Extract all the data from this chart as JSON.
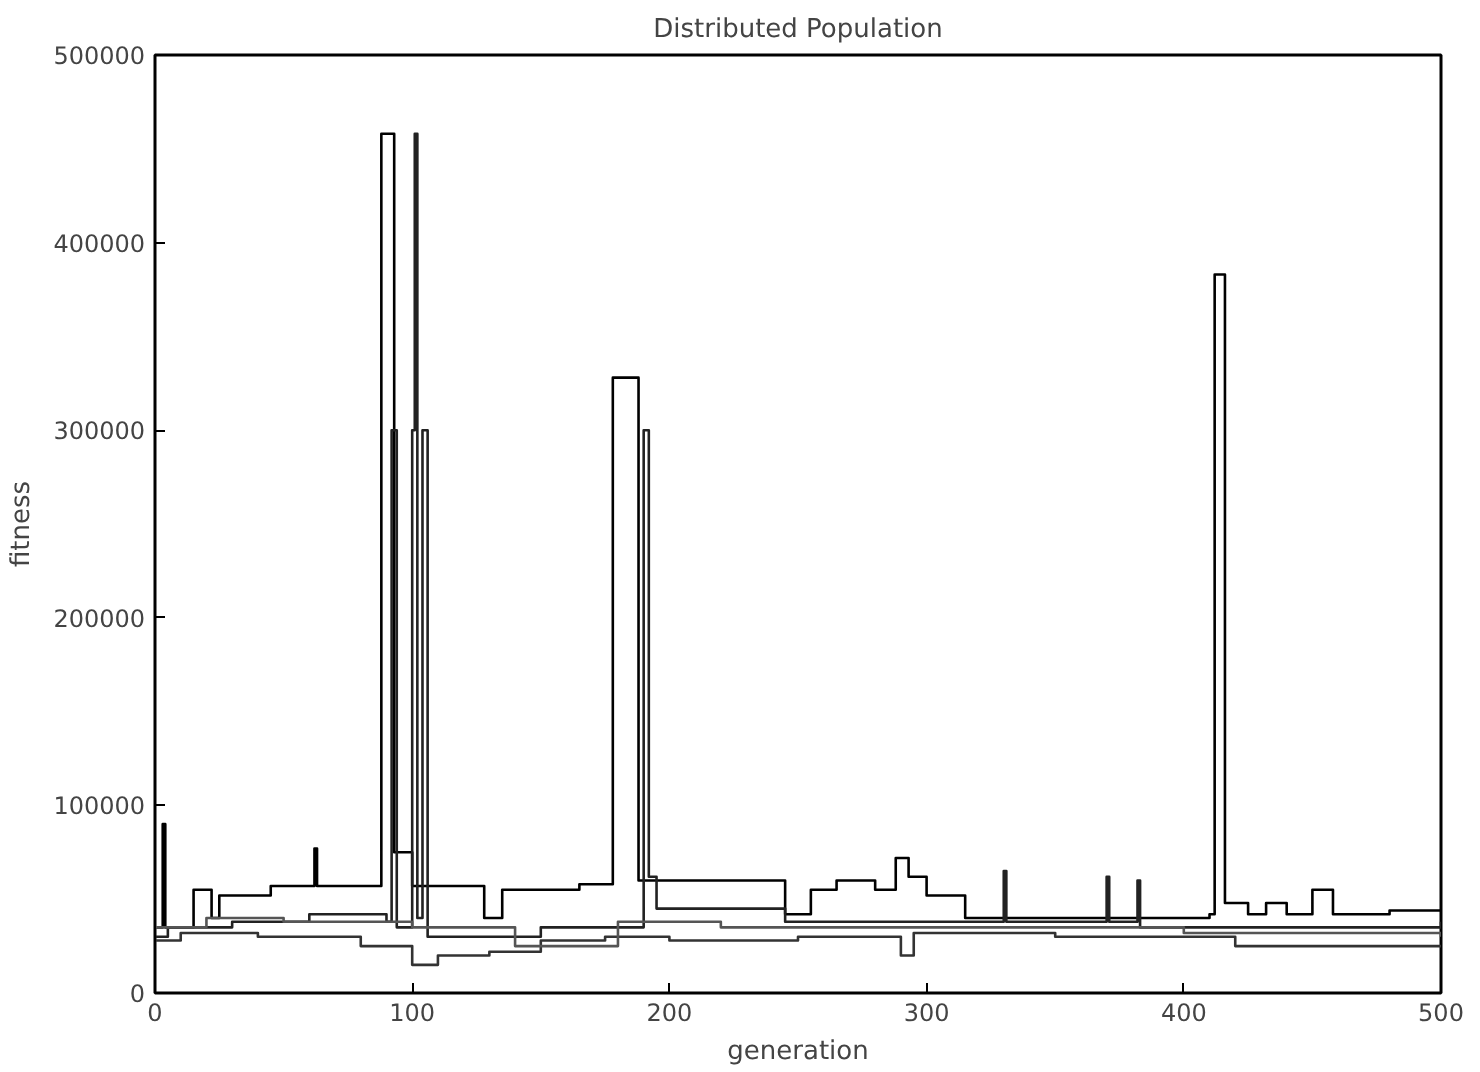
{
  "chart_data": {
    "type": "step",
    "title": "Distributed Population",
    "xlabel": "generation",
    "ylabel": "fitness",
    "xlim": [
      0,
      500
    ],
    "ylim": [
      0,
      500000
    ],
    "xticks": [
      0,
      100,
      200,
      300,
      400,
      500
    ],
    "yticks": [
      0,
      100000,
      200000,
      300000,
      400000,
      500000
    ],
    "grid": false,
    "series": [
      {
        "color": "#000000",
        "x": [
          0,
          3,
          4,
          15,
          22,
          25,
          45,
          62,
          63,
          88,
          93,
          100,
          110,
          128,
          135,
          165,
          178,
          188,
          245,
          255,
          265,
          280,
          288,
          293,
          300,
          315,
          410,
          412,
          416,
          425,
          432,
          440,
          450,
          458,
          480,
          500
        ],
        "values": [
          35000,
          90000,
          35000,
          55000,
          40000,
          52000,
          57000,
          77000,
          57000,
          458000,
          75000,
          57000,
          57000,
          40000,
          55000,
          58000,
          328000,
          60000,
          42000,
          55000,
          60000,
          55000,
          72000,
          62000,
          52000,
          40000,
          42000,
          383000,
          48000,
          42000,
          48000,
          42000,
          55000,
          42000,
          44000,
          44000
        ]
      },
      {
        "color": "#222222",
        "x": [
          0,
          5,
          30,
          60,
          90,
          92,
          94,
          100,
          101,
          102,
          104,
          106,
          150,
          190,
          192,
          195,
          240,
          245,
          330,
          331,
          370,
          371,
          382,
          383,
          500
        ],
        "values": [
          30000,
          35000,
          38000,
          42000,
          38000,
          300000,
          35000,
          300000,
          458000,
          40000,
          300000,
          30000,
          35000,
          300000,
          62000,
          45000,
          45000,
          38000,
          65000,
          38000,
          62000,
          38000,
          60000,
          35000,
          38000
        ]
      },
      {
        "color": "#333333",
        "x": [
          0,
          10,
          40,
          80,
          95,
          100,
          110,
          130,
          150,
          175,
          200,
          250,
          290,
          295,
          350,
          420,
          500
        ],
        "values": [
          28000,
          32000,
          30000,
          25000,
          25000,
          15000,
          20000,
          22000,
          28000,
          30000,
          28000,
          30000,
          20000,
          32000,
          30000,
          25000,
          25000
        ]
      },
      {
        "color": "#555555",
        "x": [
          0,
          20,
          50,
          100,
          140,
          180,
          220,
          300,
          400,
          500
        ],
        "values": [
          35000,
          40000,
          38000,
          35000,
          25000,
          38000,
          35000,
          35000,
          32000,
          30000
        ]
      }
    ]
  }
}
